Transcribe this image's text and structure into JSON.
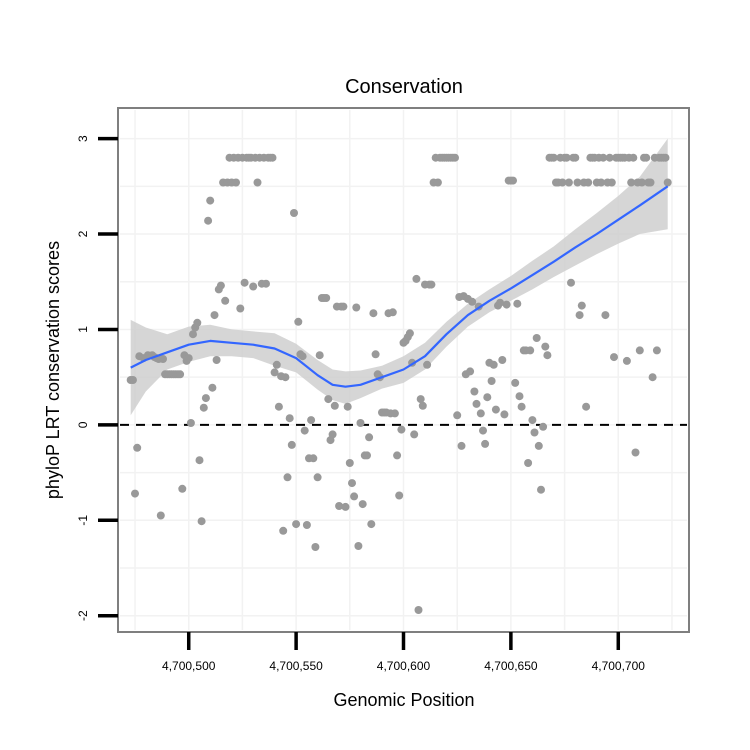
{
  "chart_data": {
    "type": "scatter",
    "title": "Conservation",
    "xlabel": "Genomic Position",
    "ylabel": "phyloP LRT conservation scores",
    "xlim": [
      4700468,
      4700732
    ],
    "ylim": [
      -2.15,
      3.3
    ],
    "x_ticks": [
      {
        "value": 4700500,
        "label": "4,700,500"
      },
      {
        "value": 4700550,
        "label": "4,700,550"
      },
      {
        "value": 4700600,
        "label": "4,700,600"
      },
      {
        "value": 4700650,
        "label": "4,700,650"
      },
      {
        "value": 4700700,
        "label": "4,700,700"
      }
    ],
    "y_ticks": [
      {
        "value": -2,
        "label": "-2"
      },
      {
        "value": -1,
        "label": "-1"
      },
      {
        "value": 0,
        "label": "0"
      },
      {
        "value": 1,
        "label": "1"
      },
      {
        "value": 2,
        "label": "2"
      },
      {
        "value": 3,
        "label": "3"
      }
    ],
    "grid": true,
    "reference_line": {
      "y": 0,
      "style": "dashed"
    },
    "colors": {
      "points": "#999999",
      "smooth_line": "#3366ff",
      "ribbon": "#cccccc",
      "grid": "#f2f2f2",
      "panel_border": "#7f7f7f",
      "reference_line": "#000000"
    },
    "points": [
      [
        4700473,
        0.47
      ],
      [
        4700474,
        0.47
      ],
      [
        4700475,
        -0.72
      ],
      [
        4700476,
        -0.24
      ],
      [
        4700477,
        0.72
      ],
      [
        4700479,
        0.7
      ],
      [
        4700481,
        0.73
      ],
      [
        4700483,
        0.73
      ],
      [
        4700484,
        0.71
      ],
      [
        4700485,
        0.7
      ],
      [
        4700486,
        0.69
      ],
      [
        4700487,
        -0.95
      ],
      [
        4700488,
        0.69
      ],
      [
        4700489,
        0.53
      ],
      [
        4700490,
        0.53
      ],
      [
        4700491,
        0.53
      ],
      [
        4700492,
        0.53
      ],
      [
        4700493,
        0.53
      ],
      [
        4700494,
        0.53
      ],
      [
        4700495,
        0.53
      ],
      [
        4700496,
        0.53
      ],
      [
        4700497,
        -0.67
      ],
      [
        4700498,
        0.73
      ],
      [
        4700499,
        0.67
      ],
      [
        4700500,
        0.7
      ],
      [
        4700501,
        0.02
      ],
      [
        4700502,
        0.95
      ],
      [
        4700503,
        1.02
      ],
      [
        4700504,
        1.07
      ],
      [
        4700505,
        -0.37
      ],
      [
        4700506,
        -1.01
      ],
      [
        4700507,
        0.18
      ],
      [
        4700508,
        0.28
      ],
      [
        4700509,
        2.14
      ],
      [
        4700510,
        2.35
      ],
      [
        4700511,
        0.39
      ],
      [
        4700512,
        1.15
      ],
      [
        4700513,
        0.68
      ],
      [
        4700514,
        1.42
      ],
      [
        4700515,
        1.46
      ],
      [
        4700516,
        2.54
      ],
      [
        4700517,
        1.3
      ],
      [
        4700518,
        2.54
      ],
      [
        4700519,
        2.8
      ],
      [
        4700520,
        2.54
      ],
      [
        4700521,
        2.8
      ],
      [
        4700522,
        2.54
      ],
      [
        4700523,
        2.8
      ],
      [
        4700524,
        1.22
      ],
      [
        4700525,
        2.8
      ],
      [
        4700526,
        1.49
      ],
      [
        4700527,
        2.8
      ],
      [
        4700528,
        2.8
      ],
      [
        4700529,
        2.8
      ],
      [
        4700530,
        1.45
      ],
      [
        4700531,
        2.8
      ],
      [
        4700532,
        2.54
      ],
      [
        4700533,
        2.8
      ],
      [
        4700534,
        1.48
      ],
      [
        4700535,
        2.8
      ],
      [
        4700536,
        1.48
      ],
      [
        4700537,
        2.8
      ],
      [
        4700538,
        2.8
      ],
      [
        4700539,
        2.8
      ],
      [
        4700540,
        0.55
      ],
      [
        4700541,
        0.63
      ],
      [
        4700542,
        0.19
      ],
      [
        4700543,
        0.51
      ],
      [
        4700544,
        -1.11
      ],
      [
        4700545,
        0.5
      ],
      [
        4700546,
        -0.55
      ],
      [
        4700547,
        0.07
      ],
      [
        4700548,
        -0.21
      ],
      [
        4700549,
        2.22
      ],
      [
        4700550,
        -1.04
      ],
      [
        4700551,
        1.08
      ],
      [
        4700552,
        0.74
      ],
      [
        4700553,
        0.72
      ],
      [
        4700554,
        -0.06
      ],
      [
        4700555,
        -1.05
      ],
      [
        4700556,
        -0.35
      ],
      [
        4700557,
        0.05
      ],
      [
        4700558,
        -0.35
      ],
      [
        4700559,
        -1.28
      ],
      [
        4700560,
        -0.55
      ],
      [
        4700561,
        0.73
      ],
      [
        4700562,
        1.33
      ],
      [
        4700563,
        1.33
      ],
      [
        4700564,
        1.33
      ],
      [
        4700565,
        0.27
      ],
      [
        4700566,
        -0.16
      ],
      [
        4700567,
        -0.1
      ],
      [
        4700568,
        0.2
      ],
      [
        4700569,
        1.24
      ],
      [
        4700570,
        -0.85
      ],
      [
        4700571,
        1.24
      ],
      [
        4700572,
        1.24
      ],
      [
        4700573,
        -0.86
      ],
      [
        4700574,
        0.19
      ],
      [
        4700575,
        -0.4
      ],
      [
        4700576,
        -0.61
      ],
      [
        4700577,
        -0.75
      ],
      [
        4700578,
        1.23
      ],
      [
        4700579,
        -1.27
      ],
      [
        4700580,
        0.02
      ],
      [
        4700581,
        -0.83
      ],
      [
        4700582,
        -0.32
      ],
      [
        4700583,
        -0.32
      ],
      [
        4700584,
        -0.13
      ],
      [
        4700585,
        -1.04
      ],
      [
        4700586,
        1.17
      ],
      [
        4700587,
        0.74
      ],
      [
        4700588,
        0.53
      ],
      [
        4700589,
        0.5
      ],
      [
        4700590,
        0.13
      ],
      [
        4700591,
        0.13
      ],
      [
        4700592,
        0.13
      ],
      [
        4700593,
        1.17
      ],
      [
        4700594,
        0.12
      ],
      [
        4700595,
        1.18
      ],
      [
        4700596,
        0.12
      ],
      [
        4700597,
        -0.32
      ],
      [
        4700598,
        -0.74
      ],
      [
        4700599,
        -0.05
      ],
      [
        4700600,
        0.86
      ],
      [
        4700601,
        0.88
      ],
      [
        4700602,
        0.92
      ],
      [
        4700603,
        0.96
      ],
      [
        4700604,
        0.65
      ],
      [
        4700605,
        -0.1
      ],
      [
        4700606,
        1.53
      ],
      [
        4700607,
        -1.94
      ],
      [
        4700608,
        0.27
      ],
      [
        4700609,
        0.2
      ],
      [
        4700610,
        1.47
      ],
      [
        4700611,
        0.63
      ],
      [
        4700612,
        1.47
      ],
      [
        4700613,
        1.47
      ],
      [
        4700614,
        2.54
      ],
      [
        4700615,
        2.8
      ],
      [
        4700616,
        2.54
      ],
      [
        4700617,
        2.8
      ],
      [
        4700618,
        2.8
      ],
      [
        4700619,
        2.8
      ],
      [
        4700620,
        2.8
      ],
      [
        4700621,
        2.8
      ],
      [
        4700622,
        2.8
      ],
      [
        4700623,
        2.8
      ],
      [
        4700624,
        2.8
      ],
      [
        4700625,
        0.1
      ],
      [
        4700626,
        1.34
      ],
      [
        4700627,
        -0.22
      ],
      [
        4700628,
        1.35
      ],
      [
        4700629,
        0.53
      ],
      [
        4700630,
        1.32
      ],
      [
        4700631,
        0.56
      ],
      [
        4700632,
        1.29
      ],
      [
        4700633,
        0.35
      ],
      [
        4700634,
        0.22
      ],
      [
        4700635,
        1.24
      ],
      [
        4700636,
        0.12
      ],
      [
        4700637,
        -0.06
      ],
      [
        4700638,
        -0.2
      ],
      [
        4700639,
        0.29
      ],
      [
        4700640,
        0.65
      ],
      [
        4700641,
        0.46
      ],
      [
        4700642,
        0.63
      ],
      [
        4700643,
        0.16
      ],
      [
        4700644,
        1.25
      ],
      [
        4700645,
        1.28
      ],
      [
        4700646,
        0.68
      ],
      [
        4700647,
        0.11
      ],
      [
        4700648,
        1.26
      ],
      [
        4700649,
        2.56
      ],
      [
        4700650,
        2.56
      ],
      [
        4700651,
        2.56
      ],
      [
        4700652,
        0.44
      ],
      [
        4700653,
        1.27
      ],
      [
        4700654,
        0.3
      ],
      [
        4700655,
        0.19
      ],
      [
        4700656,
        0.78
      ],
      [
        4700657,
        0.78
      ],
      [
        4700658,
        -0.4
      ],
      [
        4700659,
        0.78
      ],
      [
        4700660,
        0.05
      ],
      [
        4700661,
        -0.08
      ],
      [
        4700662,
        0.91
      ],
      [
        4700663,
        -0.22
      ],
      [
        4700664,
        -0.68
      ],
      [
        4700665,
        -0.02
      ],
      [
        4700666,
        0.82
      ],
      [
        4700667,
        0.73
      ],
      [
        4700668,
        2.8
      ],
      [
        4700669,
        2.8
      ],
      [
        4700670,
        2.8
      ],
      [
        4700671,
        2.54
      ],
      [
        4700672,
        2.54
      ],
      [
        4700673,
        2.8
      ],
      [
        4700674,
        2.54
      ],
      [
        4700675,
        2.8
      ],
      [
        4700676,
        2.8
      ],
      [
        4700677,
        2.54
      ],
      [
        4700678,
        1.49
      ],
      [
        4700679,
        2.8
      ],
      [
        4700680,
        2.8
      ],
      [
        4700681,
        2.54
      ],
      [
        4700682,
        1.15
      ],
      [
        4700683,
        1.25
      ],
      [
        4700684,
        2.54
      ],
      [
        4700685,
        0.19
      ],
      [
        4700686,
        2.54
      ],
      [
        4700687,
        2.8
      ],
      [
        4700688,
        2.8
      ],
      [
        4700689,
        2.8
      ],
      [
        4700690,
        2.54
      ],
      [
        4700691,
        2.8
      ],
      [
        4700692,
        2.54
      ],
      [
        4700693,
        2.8
      ],
      [
        4700694,
        1.15
      ],
      [
        4700695,
        2.54
      ],
      [
        4700696,
        2.8
      ],
      [
        4700697,
        2.54
      ],
      [
        4700698,
        0.71
      ],
      [
        4700699,
        2.8
      ],
      [
        4700700,
        2.8
      ],
      [
        4700701,
        2.8
      ],
      [
        4700702,
        2.8
      ],
      [
        4700703,
        2.8
      ],
      [
        4700704,
        0.67
      ],
      [
        4700705,
        2.8
      ],
      [
        4700706,
        2.54
      ],
      [
        4700707,
        2.8
      ],
      [
        4700708,
        -0.29
      ],
      [
        4700709,
        2.54
      ],
      [
        4700710,
        0.78
      ],
      [
        4700711,
        2.54
      ],
      [
        4700712,
        2.8
      ],
      [
        4700713,
        2.8
      ],
      [
        4700714,
        2.54
      ],
      [
        4700715,
        2.54
      ],
      [
        4700716,
        0.5
      ],
      [
        4700717,
        2.8
      ],
      [
        4700718,
        0.78
      ],
      [
        4700719,
        2.8
      ],
      [
        4700720,
        2.8
      ],
      [
        4700721,
        2.8
      ],
      [
        4700722,
        2.8
      ],
      [
        4700723,
        2.54
      ]
    ],
    "smooth": {
      "x": [
        4700473,
        4700480,
        4700490,
        4700500,
        4700510,
        4700520,
        4700530,
        4700540,
        4700550,
        4700560,
        4700567,
        4700573,
        4700580,
        4700590,
        4700600,
        4700610,
        4700620,
        4700630,
        4700640,
        4700650,
        4700660,
        4700670,
        4700680,
        4700690,
        4700700,
        4700710,
        4700723
      ],
      "y": [
        0.6,
        0.68,
        0.76,
        0.84,
        0.88,
        0.86,
        0.84,
        0.8,
        0.7,
        0.52,
        0.42,
        0.4,
        0.42,
        0.5,
        0.58,
        0.72,
        0.95,
        1.15,
        1.3,
        1.43,
        1.57,
        1.71,
        1.86,
        2.0,
        2.15,
        2.3,
        2.5
      ],
      "lower": [
        0.1,
        0.35,
        0.58,
        0.66,
        0.72,
        0.72,
        0.7,
        0.62,
        0.55,
        0.37,
        0.26,
        0.22,
        0.28,
        0.38,
        0.44,
        0.58,
        0.82,
        1.03,
        1.18,
        1.3,
        1.42,
        1.55,
        1.67,
        1.79,
        1.9,
        2.0,
        2.05
      ],
      "upper": [
        1.1,
        1.02,
        0.95,
        1.03,
        1.05,
        1.0,
        0.98,
        0.96,
        0.85,
        0.68,
        0.58,
        0.56,
        0.57,
        0.62,
        0.72,
        0.86,
        1.08,
        1.27,
        1.42,
        1.56,
        1.72,
        1.87,
        2.05,
        2.22,
        2.4,
        2.6,
        3.0
      ]
    }
  }
}
